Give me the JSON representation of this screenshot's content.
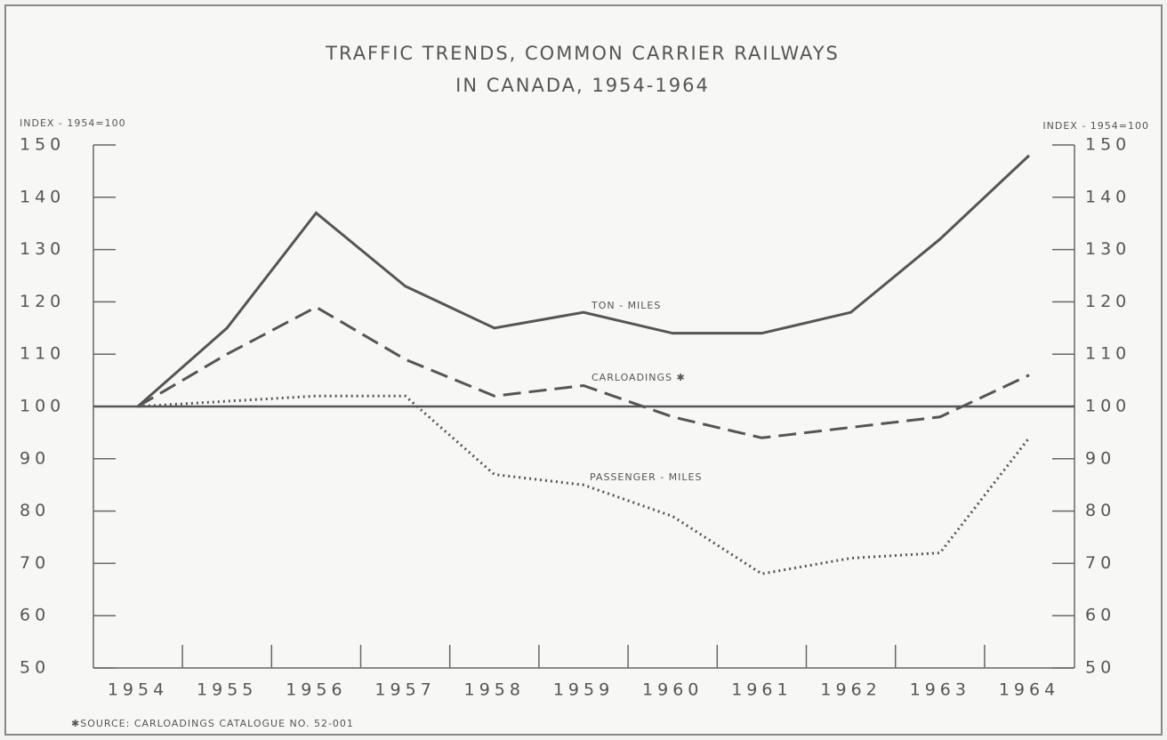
{
  "chart_data": {
    "type": "line",
    "title": "TRAFFIC TRENDS, COMMON CARRIER RAILWAYS",
    "subtitle": "IN CANADA, 1954-1964",
    "ylabel": "INDEX - 1954=100",
    "y2label": "INDEX - 1954=100",
    "categories": [
      "1954",
      "1955",
      "1956",
      "1957",
      "1958",
      "1959",
      "1960",
      "1961",
      "1962",
      "1963",
      "1964"
    ],
    "series": [
      {
        "name": "TON - MILES",
        "color": "#555555",
        "dash": "solid",
        "values": [
          100,
          115,
          137,
          123,
          115,
          118,
          114,
          114,
          118,
          132,
          148
        ]
      },
      {
        "name": "CARLOADINGS ✱",
        "color": "#555555",
        "dash": "dashed",
        "values": [
          100,
          110,
          119,
          109,
          102,
          104,
          98,
          94,
          96,
          98,
          106
        ]
      },
      {
        "name": "PASSENGER - MILES",
        "color": "#555555",
        "dash": "dotted",
        "values": [
          100,
          101,
          102,
          102,
          87,
          85,
          79,
          68,
          71,
          72,
          94
        ]
      }
    ],
    "reference_line": 100,
    "ylim": [
      50,
      150
    ],
    "yticks": [
      50,
      60,
      70,
      80,
      90,
      100,
      110,
      120,
      130,
      140,
      150
    ],
    "y2lim": [
      50,
      150
    ],
    "y2ticks": [
      50,
      60,
      70,
      80,
      90,
      100,
      110,
      120,
      130,
      140,
      150
    ],
    "footnote": "✱SOURCE: CARLOADINGS CATALOGUE NO. 52-001"
  }
}
